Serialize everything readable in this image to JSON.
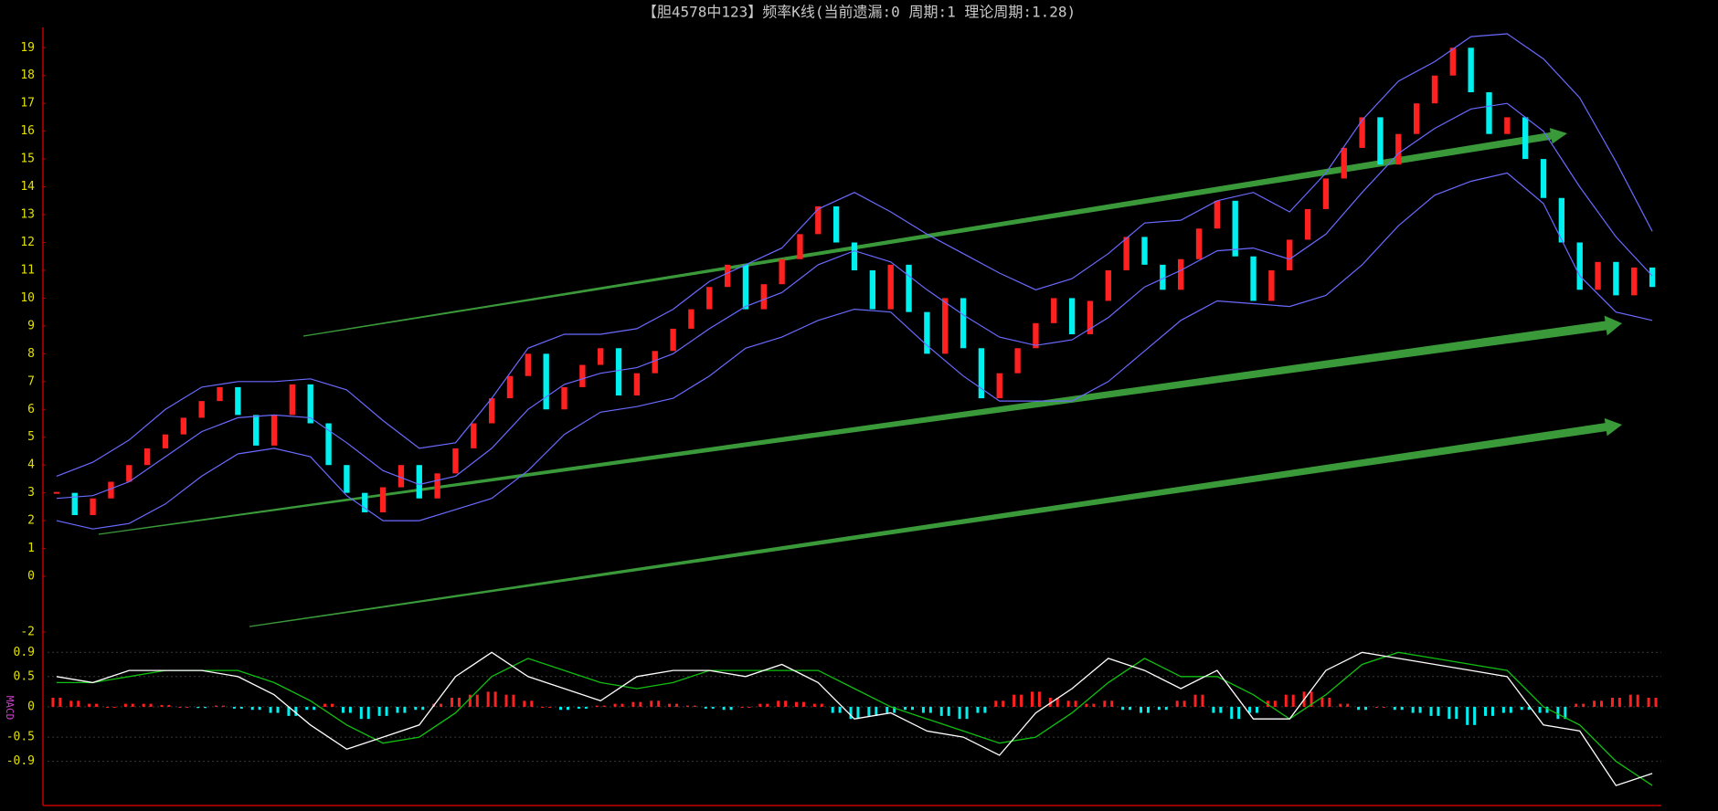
{
  "chart_data": [
    {
      "type": "candlestick",
      "title": "【胆4578中123】频率K线(当前遗漏:0 周期:1 理论周期:1.28)",
      "close": [
        3.0,
        2.2,
        2.8,
        3.4,
        4.0,
        4.6,
        5.1,
        5.7,
        6.3,
        6.8,
        5.8,
        4.7,
        5.8,
        6.9,
        5.5,
        4.0,
        3.0,
        2.3,
        3.2,
        4.0,
        2.8,
        3.7,
        4.6,
        5.5,
        6.4,
        7.2,
        8.0,
        6.0,
        6.8,
        7.6,
        8.2,
        6.5,
        7.3,
        8.1,
        8.9,
        9.6,
        10.4,
        11.2,
        9.6,
        10.5,
        11.4,
        12.3,
        13.3,
        12.0,
        11.0,
        9.6,
        11.2,
        9.5,
        8.0,
        10.0,
        8.2,
        6.4,
        7.3,
        8.2,
        9.1,
        10.0,
        8.7,
        9.9,
        11.0,
        12.2,
        11.2,
        10.3,
        11.4,
        12.5,
        13.5,
        11.5,
        9.9,
        11.0,
        12.1,
        13.2,
        14.3,
        15.4,
        16.5,
        14.8,
        15.9,
        17.0,
        18.0,
        19.0,
        17.4,
        15.9,
        16.5,
        15.0,
        13.6,
        12.0,
        10.3,
        11.3,
        10.1,
        11.1,
        10.4
      ],
      "up_color": "#ff2020",
      "down_color": "#00f0f0",
      "bands": {
        "color": "#6a6aff",
        "upper": [
          3.6,
          4.1,
          4.9,
          6.0,
          6.8,
          7.0,
          7.0,
          7.1,
          6.7,
          5.6,
          4.6,
          4.8,
          6.4,
          8.2,
          8.7,
          8.7,
          8.9,
          9.6,
          10.6,
          11.2,
          11.8,
          13.2,
          13.8,
          13.1,
          12.3,
          11.6,
          10.9,
          10.3,
          10.7,
          11.6,
          12.7,
          12.8,
          13.5,
          13.8,
          13.1,
          14.5,
          16.4,
          17.8,
          18.5,
          19.4,
          19.5,
          18.6,
          17.2,
          14.9,
          12.4
        ],
        "mid": [
          2.8,
          2.9,
          3.4,
          4.3,
          5.2,
          5.7,
          5.8,
          5.7,
          4.8,
          3.8,
          3.3,
          3.6,
          4.6,
          6.0,
          6.9,
          7.3,
          7.5,
          8.0,
          8.9,
          9.7,
          10.2,
          11.2,
          11.7,
          11.3,
          10.3,
          9.4,
          8.6,
          8.3,
          8.5,
          9.3,
          10.4,
          11.0,
          11.7,
          11.8,
          11.4,
          12.3,
          13.8,
          15.2,
          16.1,
          16.8,
          17.0,
          16.0,
          14.0,
          12.2,
          10.8
        ],
        "lower": [
          2.0,
          1.7,
          1.9,
          2.6,
          3.6,
          4.4,
          4.6,
          4.3,
          2.9,
          2.0,
          2.0,
          2.4,
          2.8,
          3.8,
          5.1,
          5.9,
          6.1,
          6.4,
          7.2,
          8.2,
          8.6,
          9.2,
          9.6,
          9.5,
          8.3,
          7.2,
          6.3,
          6.3,
          6.3,
          7.0,
          8.1,
          9.2,
          9.9,
          9.8,
          9.7,
          10.1,
          11.2,
          12.6,
          13.7,
          14.2,
          14.5,
          13.4,
          10.8,
          9.5,
          9.2
        ]
      },
      "ylim": [
        -2.1,
        19.6
      ],
      "yticks": [
        -2,
        0,
        1,
        2,
        3,
        4,
        5,
        6,
        7,
        8,
        9,
        10,
        11,
        12,
        13,
        14,
        15,
        16,
        17,
        18,
        19
      ]
    },
    {
      "type": "macd",
      "label": "MACD",
      "dif": {
        "color": "#ffffff",
        "values": [
          0.5,
          0.4,
          0.6,
          0.6,
          0.6,
          0.5,
          0.2,
          -0.3,
          -0.7,
          -0.5,
          -0.3,
          0.5,
          0.9,
          0.5,
          0.3,
          0.1,
          0.5,
          0.6,
          0.6,
          0.5,
          0.7,
          0.4,
          -0.2,
          -0.1,
          -0.4,
          -0.5,
          -0.8,
          -0.1,
          0.3,
          0.8,
          0.6,
          0.3,
          0.6,
          -0.2,
          -0.2,
          0.6,
          0.9,
          0.8,
          0.7,
          0.6,
          0.5,
          -0.3,
          -0.4,
          -1.3,
          -1.1
        ]
      },
      "dea": {
        "color": "#10c010",
        "values": [
          0.4,
          0.4,
          0.5,
          0.6,
          0.6,
          0.6,
          0.4,
          0.1,
          -0.3,
          -0.6,
          -0.5,
          -0.1,
          0.5,
          0.8,
          0.6,
          0.4,
          0.3,
          0.4,
          0.6,
          0.6,
          0.6,
          0.6,
          0.3,
          0.0,
          -0.2,
          -0.4,
          -0.6,
          -0.5,
          -0.1,
          0.4,
          0.8,
          0.5,
          0.5,
          0.2,
          -0.2,
          0.2,
          0.7,
          0.9,
          0.8,
          0.7,
          0.6,
          0.0,
          -0.3,
          -0.9,
          -1.3
        ]
      },
      "hist": [
        0.15,
        0.1,
        0.05,
        0.0,
        0.05,
        0.05,
        0.03,
        0.0,
        -0.02,
        0.02,
        -0.03,
        -0.05,
        -0.1,
        -0.15,
        -0.05,
        0.05,
        -0.1,
        -0.2,
        -0.15,
        -0.1,
        -0.05,
        0.05,
        0.15,
        0.2,
        0.25,
        0.2,
        0.1,
        0.0,
        -0.05,
        -0.03,
        0.02,
        0.05,
        0.08,
        0.1,
        0.05,
        0.02,
        -0.03,
        -0.05,
        0.0,
        0.05,
        0.1,
        0.08,
        0.05,
        -0.1,
        -0.2,
        -0.15,
        -0.1,
        -0.05,
        -0.1,
        -0.15,
        -0.2,
        -0.1,
        0.1,
        0.2,
        0.25,
        0.15,
        0.1,
        0.05,
        0.1,
        -0.05,
        -0.1,
        -0.05,
        0.1,
        0.2,
        -0.1,
        -0.2,
        -0.1,
        0.1,
        0.2,
        0.25,
        0.15,
        0.05,
        -0.05,
        0.0,
        -0.05,
        -0.1,
        -0.15,
        -0.2,
        -0.3,
        -0.15,
        -0.1,
        -0.05,
        -0.1,
        -0.2,
        0.05,
        0.1,
        0.15,
        0.2,
        0.15
      ],
      "up_color": "#ff2020",
      "down_color": "#00f0f0",
      "ylim": [
        -1.6,
        1.1
      ],
      "yticks": [
        0.9,
        0.5,
        0,
        -0.5,
        -0.9
      ]
    }
  ]
}
